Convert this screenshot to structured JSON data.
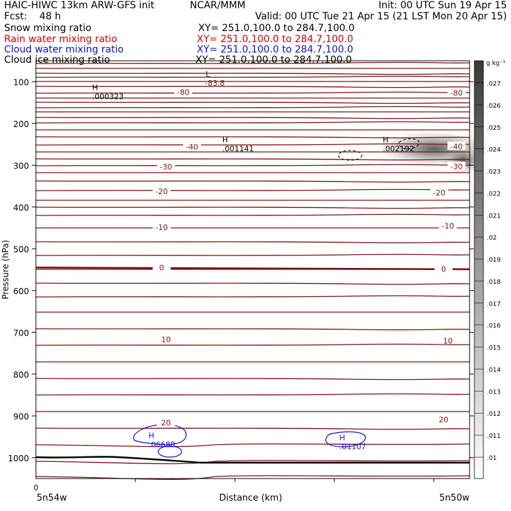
{
  "header": {
    "model": "HAIC-HIWC 13km ARW-GFS init",
    "org": "NCAR/MMM",
    "init": "Init: 00 UTC Sun 19 Apr 15",
    "fcst": "Fcst:    48 h",
    "valid": "Valid: 00 UTC Tue 21 Apr 15 (21 LST Mon 20 Apr 15)"
  },
  "fields": [
    {
      "label": "Snow mixing ratio",
      "xy": "XY= 251.0,100.0 to 284.7,100.0",
      "color": "#000000"
    },
    {
      "label": "Rain water mixing ratio",
      "xy": "XY= 251.0,100.0 to 284.7,100.0",
      "color": "#d40000"
    },
    {
      "label": "Cloud water mixing ratio",
      "xy": "XY= 251.0,100.0 to 284.7,100.0",
      "color": "#1010c8"
    },
    {
      "label": "Cloud ice mixing ratio",
      "xy": "XY= 251.0,100.0 to 284.7,100.0",
      "color": "#000000"
    }
  ],
  "colors": {
    "temperature": "#7a1010",
    "cloud_water": "#1010c8",
    "cloud_ice": "#000000",
    "terrain": "#000000"
  },
  "chart_data": {
    "type": "cross-section contour",
    "ylabel": "Pressure (hPa)",
    "xlabel": "Distance (km)",
    "y_ticks": [
      100,
      200,
      300,
      400,
      500,
      600,
      700,
      800,
      900,
      1000
    ],
    "ylim": [
      50,
      1050
    ],
    "x_start_label": "5n54w",
    "x_end_label": "5n50w",
    "x_origin_label": "0",
    "colorbar": {
      "unit": "g kg⁻¹",
      "levels": [
        ".01",
        ".011",
        ".012",
        ".013",
        ".014",
        ".015",
        ".016",
        ".017",
        ".018",
        ".019",
        ".02",
        ".021",
        ".022",
        ".023",
        ".024",
        ".025",
        ".026",
        ".027"
      ]
    },
    "temperature_labels": [
      {
        "text": "-80",
        "x": 0.34,
        "p": 125
      },
      {
        "text": "-80",
        "x": 0.97,
        "p": 127
      },
      {
        "text": "-40",
        "x": 0.36,
        "p": 256
      },
      {
        "text": "-40",
        "x": 0.97,
        "p": 255
      },
      {
        "text": "-30",
        "x": 0.3,
        "p": 304
      },
      {
        "text": "-30",
        "x": 0.97,
        "p": 303
      },
      {
        "text": "-20",
        "x": 0.29,
        "p": 362
      },
      {
        "text": "-20",
        "x": 0.93,
        "p": 366
      },
      {
        "text": "-10",
        "x": 0.29,
        "p": 448
      },
      {
        "text": "-10",
        "x": 0.95,
        "p": 445
      },
      {
        "text": "0",
        "x": 0.29,
        "p": 545
      },
      {
        "text": "0",
        "x": 0.94,
        "p": 548
      },
      {
        "text": "10",
        "x": 0.3,
        "p": 717
      },
      {
        "text": "10",
        "x": 0.95,
        "p": 720
      },
      {
        "text": "20",
        "x": 0.3,
        "p": 916
      },
      {
        "text": "20",
        "x": 0.94,
        "p": 909
      }
    ],
    "extrema": [
      {
        "symbol": "L",
        "value": "-83.8",
        "x": 0.39,
        "p": 95
      },
      {
        "symbol": "H",
        "value": ".000323",
        "x": 0.13,
        "p": 127
      },
      {
        "symbol": "H",
        "value": ".001141",
        "x": 0.43,
        "p": 252
      },
      {
        "symbol": "H",
        "value": ".002192",
        "x": 0.8,
        "p": 252
      },
      {
        "symbol": "H",
        "value": ".06688",
        "x": 0.26,
        "p": 960
      },
      {
        "symbol": "H",
        "value": ".01107",
        "x": 0.7,
        "p": 965
      }
    ]
  }
}
